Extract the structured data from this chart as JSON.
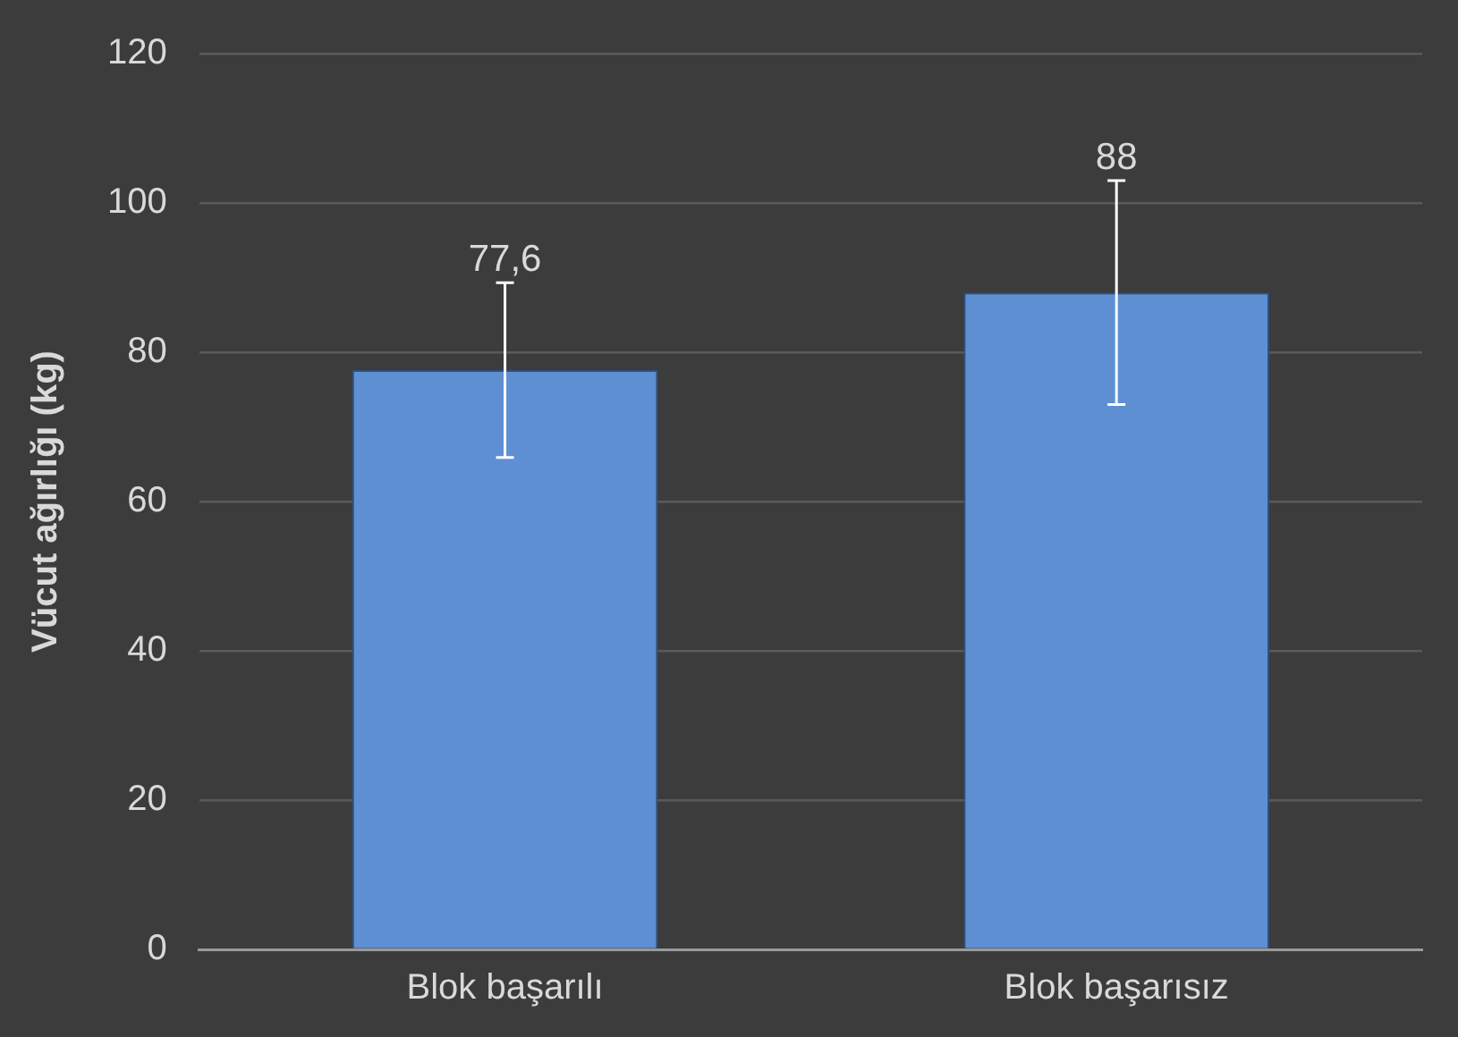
{
  "chart_data": {
    "type": "bar",
    "ylabel": "Vücut ağırlığı (kg)",
    "categories": [
      "Blok başarılı",
      "Blok başarısız"
    ],
    "values": [
      77.6,
      88
    ],
    "errors": [
      11.7,
      15
    ],
    "color": "#5f8fd3",
    "ylim": [
      0,
      120
    ],
    "yticks": [
      0,
      20,
      40,
      60,
      80,
      100,
      120
    ],
    "value_labels": [
      "77,6",
      "88"
    ],
    "grid": "y",
    "legend": false
  }
}
